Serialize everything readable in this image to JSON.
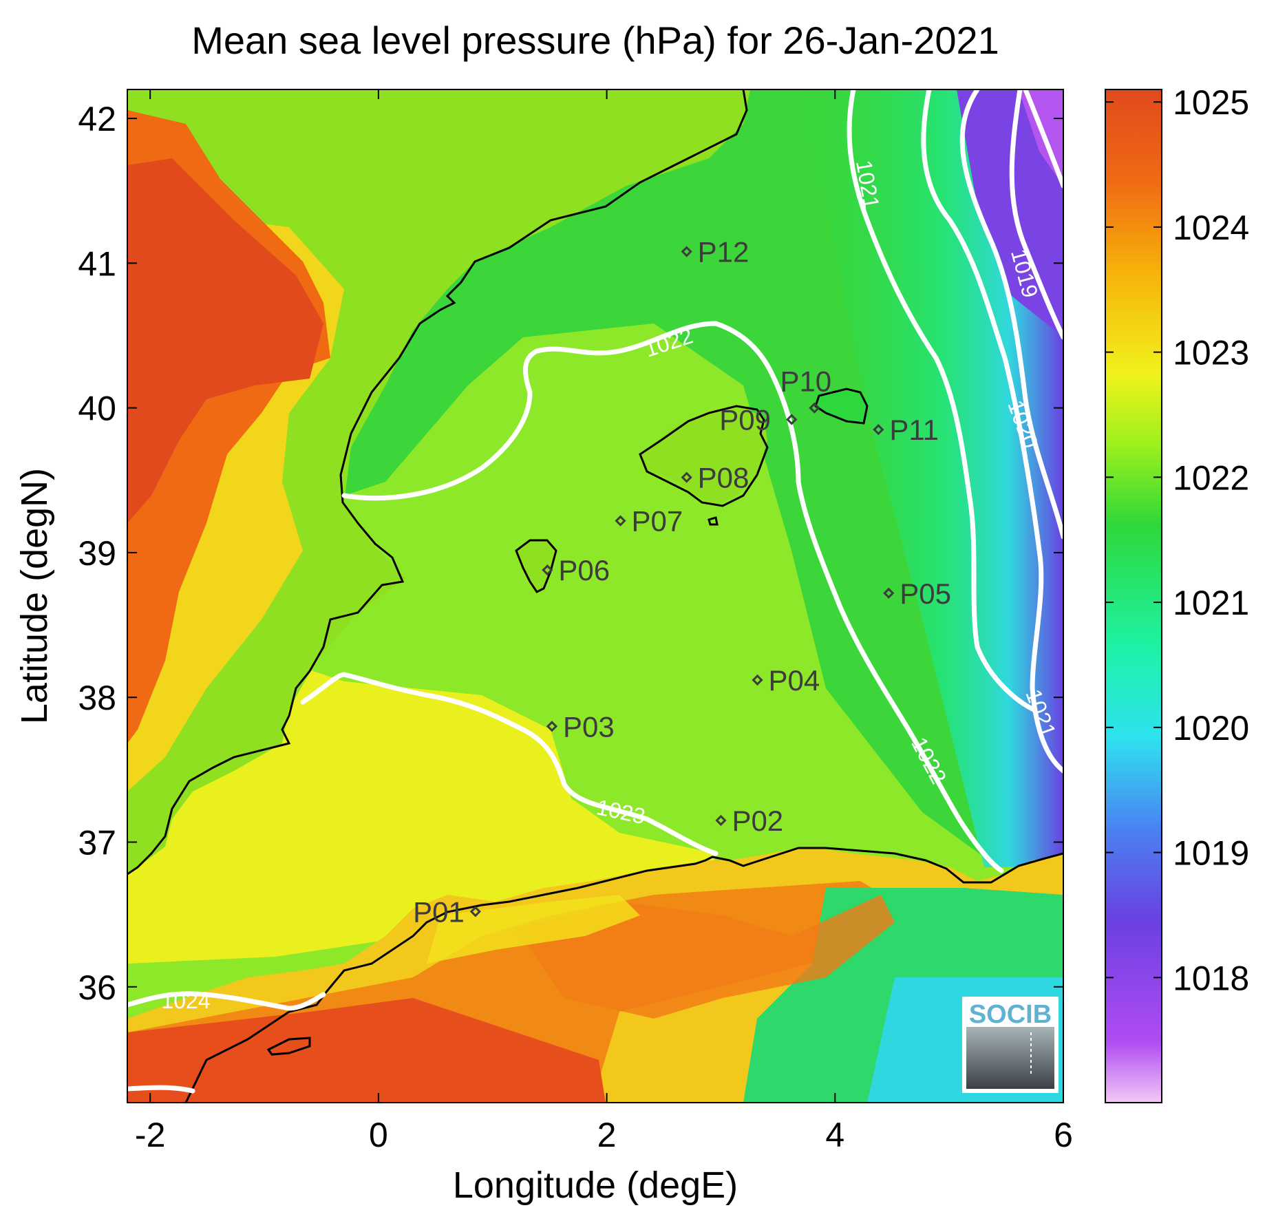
{
  "title": "Mean sea level pressure (hPa) for 26-Jan-2021",
  "x_axis": {
    "label": "Longitude (degE)",
    "range": [
      -2.2,
      6
    ],
    "ticks": [
      {
        "value": -2,
        "label": "-2"
      },
      {
        "value": 0,
        "label": "0"
      },
      {
        "value": 2,
        "label": "2"
      },
      {
        "value": 4,
        "label": "4"
      },
      {
        "value": 6,
        "label": "6"
      }
    ]
  },
  "y_axis": {
    "label": "Latitude (degN)",
    "range": [
      35.2,
      42.2
    ],
    "ticks": [
      {
        "value": 36,
        "label": "36"
      },
      {
        "value": 37,
        "label": "37"
      },
      {
        "value": 38,
        "label": "38"
      },
      {
        "value": 39,
        "label": "39"
      },
      {
        "value": 40,
        "label": "40"
      },
      {
        "value": 41,
        "label": "41"
      },
      {
        "value": 42,
        "label": "42"
      }
    ]
  },
  "colorbar": {
    "range": [
      1017,
      1025.1
    ],
    "ticks": [
      {
        "value": 1025,
        "label": "1025"
      },
      {
        "value": 1024,
        "label": "1024"
      },
      {
        "value": 1023,
        "label": "1023"
      },
      {
        "value": 1022,
        "label": "1022"
      },
      {
        "value": 1021,
        "label": "1021"
      },
      {
        "value": 1020,
        "label": "1020"
      },
      {
        "value": 1019,
        "label": "1019"
      },
      {
        "value": 1018,
        "label": "1018"
      }
    ],
    "colors": [
      "#f0c4f4",
      "#a13cf0",
      "#6e3ee0",
      "#4a7cf0",
      "#2fe0f0",
      "#1ef0a0",
      "#2dd83a",
      "#aef21a",
      "#f3f31c",
      "#f6b00a",
      "#f06a14",
      "#e04a1c"
    ]
  },
  "contour_labels": {
    "c1019": "1019",
    "c1020": "1020",
    "c1021a": "1021",
    "c1021b": "1021",
    "c1022a": "1022",
    "c1022b": "1022",
    "c1023": "1023",
    "c1024": "1024"
  },
  "stations": [
    {
      "id": "P01",
      "label": "P01",
      "lon": 0.85,
      "lat": 36.52
    },
    {
      "id": "P02",
      "label": "P02",
      "lon": 3.0,
      "lat": 37.15
    },
    {
      "id": "P03",
      "label": "P03",
      "lon": 1.52,
      "lat": 37.8
    },
    {
      "id": "P04",
      "label": "P04",
      "lon": 3.32,
      "lat": 38.12
    },
    {
      "id": "P05",
      "label": "P05",
      "lon": 4.47,
      "lat": 38.72
    },
    {
      "id": "P06",
      "label": "P06",
      "lon": 1.48,
      "lat": 38.88
    },
    {
      "id": "P07",
      "label": "P07",
      "lon": 2.12,
      "lat": 39.22
    },
    {
      "id": "P08",
      "label": "P08",
      "lon": 2.7,
      "lat": 39.52
    },
    {
      "id": "P09",
      "label": "P09",
      "lon": 3.62,
      "lat": 39.92
    },
    {
      "id": "P10",
      "label": "P10",
      "lon": 3.82,
      "lat": 40.0
    },
    {
      "id": "P11",
      "label": "P11",
      "lon": 4.38,
      "lat": 39.85
    },
    {
      "id": "P12",
      "label": "P12",
      "lon": 2.7,
      "lat": 41.08
    }
  ],
  "logo": {
    "text": "SOCIB"
  }
}
